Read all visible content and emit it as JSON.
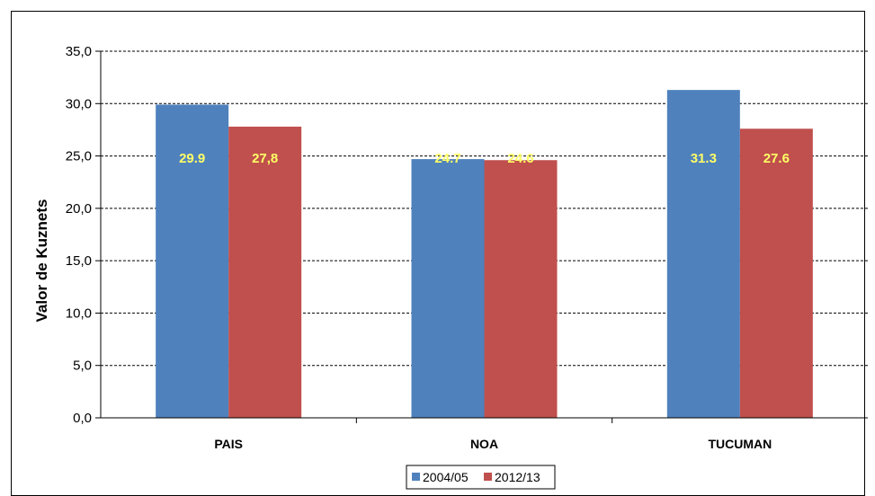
{
  "chart_data": {
    "type": "bar",
    "categories": [
      "PAIS",
      "NOA",
      "TUCUMAN"
    ],
    "series": [
      {
        "name": "2004/05",
        "values": [
          29.9,
          24.7,
          31.3
        ],
        "labels": [
          "29.9",
          "24.7",
          "31.3"
        ],
        "color": "#4F81BD"
      },
      {
        "name": "2012/13",
        "values": [
          27.8,
          24.6,
          27.6
        ],
        "labels": [
          "27,8",
          "24.6",
          "27.6"
        ],
        "color": "#C0504D"
      }
    ],
    "title": "",
    "xlabel": "",
    "ylabel": "Valor de Kuznets",
    "ylim": [
      0,
      35
    ],
    "yticks": [
      0,
      5,
      10,
      15,
      20,
      25,
      30,
      35
    ],
    "ytick_labels": [
      "0,0",
      "5,0",
      "10,0",
      "15,0",
      "20,0",
      "25,0",
      "30,0",
      "35,0"
    ],
    "grid": "horizontal-dashed",
    "legend_position": "bottom",
    "data_label_color": "#FFFF66"
  }
}
